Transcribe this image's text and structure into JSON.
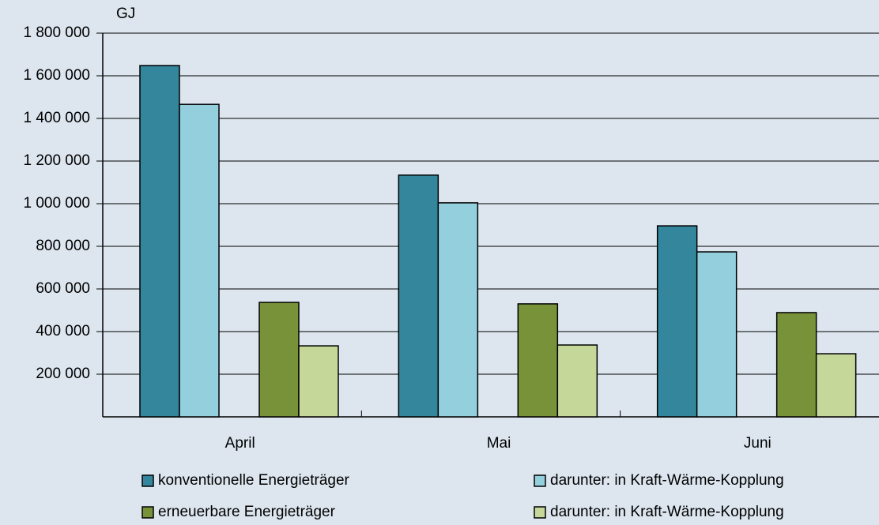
{
  "chart_data": {
    "type": "bar",
    "y_label": "GJ",
    "categories": [
      "April",
      "Mai",
      "Juni"
    ],
    "series": [
      {
        "name": "konventionelle Energieträger",
        "color": "#34869c",
        "values": [
          1648000,
          1134000,
          896000
        ]
      },
      {
        "name": "darunter: in Kraft-Wärme-Kopplung",
        "color": "#93cfdc",
        "values": [
          1466000,
          1004000,
          774000
        ]
      },
      {
        "name": "erneuerbare Energieträger",
        "color": "#78923a",
        "values": [
          537000,
          530000,
          489000
        ]
      },
      {
        "name": "darunter: in Kraft-Wärme-Kopplung",
        "color": "#c5d89a",
        "values": [
          333000,
          337000,
          296000
        ]
      }
    ],
    "ylim": [
      0,
      1800000
    ],
    "yticks": [
      {
        "value": 200000,
        "label": "200 000"
      },
      {
        "value": 400000,
        "label": "400 000"
      },
      {
        "value": 600000,
        "label": "600 000"
      },
      {
        "value": 800000,
        "label": "800 000"
      },
      {
        "value": 1000000,
        "label": "1 000 000"
      },
      {
        "value": 1200000,
        "label": "1 200 000"
      },
      {
        "value": 1400000,
        "label": "1 400 000"
      },
      {
        "value": 1600000,
        "label": "1 600 000"
      },
      {
        "value": 1800000,
        "label": "1 800 000"
      }
    ],
    "grid": true
  }
}
